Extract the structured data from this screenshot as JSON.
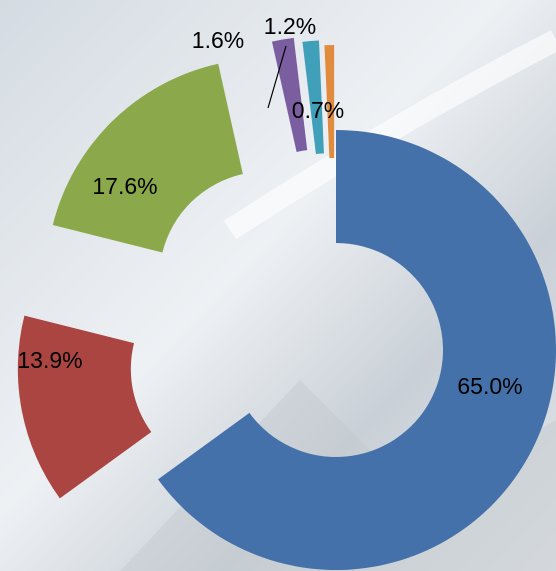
{
  "chart_data": {
    "type": "donut",
    "values": [
      65.0,
      13.9,
      17.6,
      1.6,
      1.2,
      0.7
    ],
    "value_labels": [
      "65.0%",
      "13.9%",
      "17.6%",
      "1.6%",
      "1.2%",
      "0.7%"
    ],
    "colors": [
      "#4471a9",
      "#ab4541",
      "#8ba84b",
      "#7a5ea0",
      "#40a0b9",
      "#e08b3d"
    ]
  }
}
